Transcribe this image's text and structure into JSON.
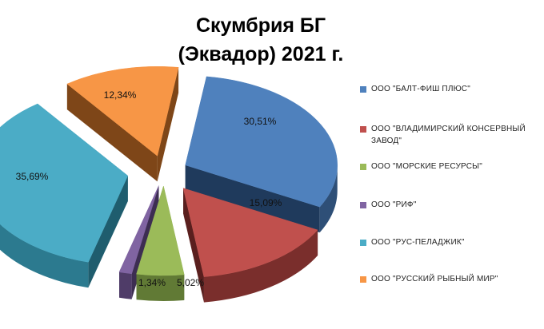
{
  "chart_data": {
    "type": "pie",
    "title": [
      "Скумбрия БГ",
      "(Эквадор) 2021 г."
    ],
    "slices": [
      {
        "name": "ООО \"БАЛТ-ФИШ ПЛЮС\"",
        "value": 30.51,
        "label": "30,51%",
        "color": "#4f81bd",
        "dark": "#2e4f77",
        "side": "#1f3a5c"
      },
      {
        "name": "ООО \"ВЛАДИМИРСКИЙ КОНСЕРВНЫЙ ЗАВОД\"",
        "value": 15.09,
        "label": "15,09%",
        "color": "#c0504d",
        "dark": "#7a2e2c",
        "side": "#5a1f1e"
      },
      {
        "name": "ООО \"МОРСКИЕ РЕСУРСЫ\"",
        "value": 5.02,
        "label": "5,02%",
        "color": "#9bbb59",
        "dark": "#617a35",
        "side": "#4a5e27"
      },
      {
        "name": "ООО \"РИФ\"",
        "value": 1.34,
        "label": "1,34%",
        "color": "#8064a2",
        "dark": "#4f3c68",
        "side": "#3d2e52"
      },
      {
        "name": "ООО \"РУС-ПЕЛАДЖИК\"",
        "value": 35.69,
        "label": "35,69%",
        "color": "#4bacc6",
        "dark": "#2c7a8f",
        "side": "#1f5d6e"
      },
      {
        "name": "ООО \"РУССКИЙ РЫБНЫЙ МИР\"",
        "value": 12.34,
        "label": "12,34%",
        "color": "#f79646",
        "dark": "#a85f22",
        "side": "#7e4618"
      }
    ],
    "legend_position": "right"
  },
  "legend": {
    "items": [
      {
        "lines": [
          "ООО \"БАЛТ-ФИШ ПЛЮС\""
        ]
      },
      {
        "lines": [
          "ООО \"ВЛАДИМИРСКИЙ КОНСЕРВНЫЙ",
          "ЗАВОД\""
        ]
      },
      {
        "lines": [
          "ООО \"МОРСКИЕ РЕСУРСЫ\""
        ]
      },
      {
        "lines": [
          "ООО \"РИФ\""
        ]
      },
      {
        "lines": [
          "ООО \"РУС-ПЕЛАДЖИК\""
        ]
      },
      {
        "lines": [
          "ООО \"РУССКИЙ РЫБНЫЙ МИР\""
        ]
      }
    ]
  }
}
